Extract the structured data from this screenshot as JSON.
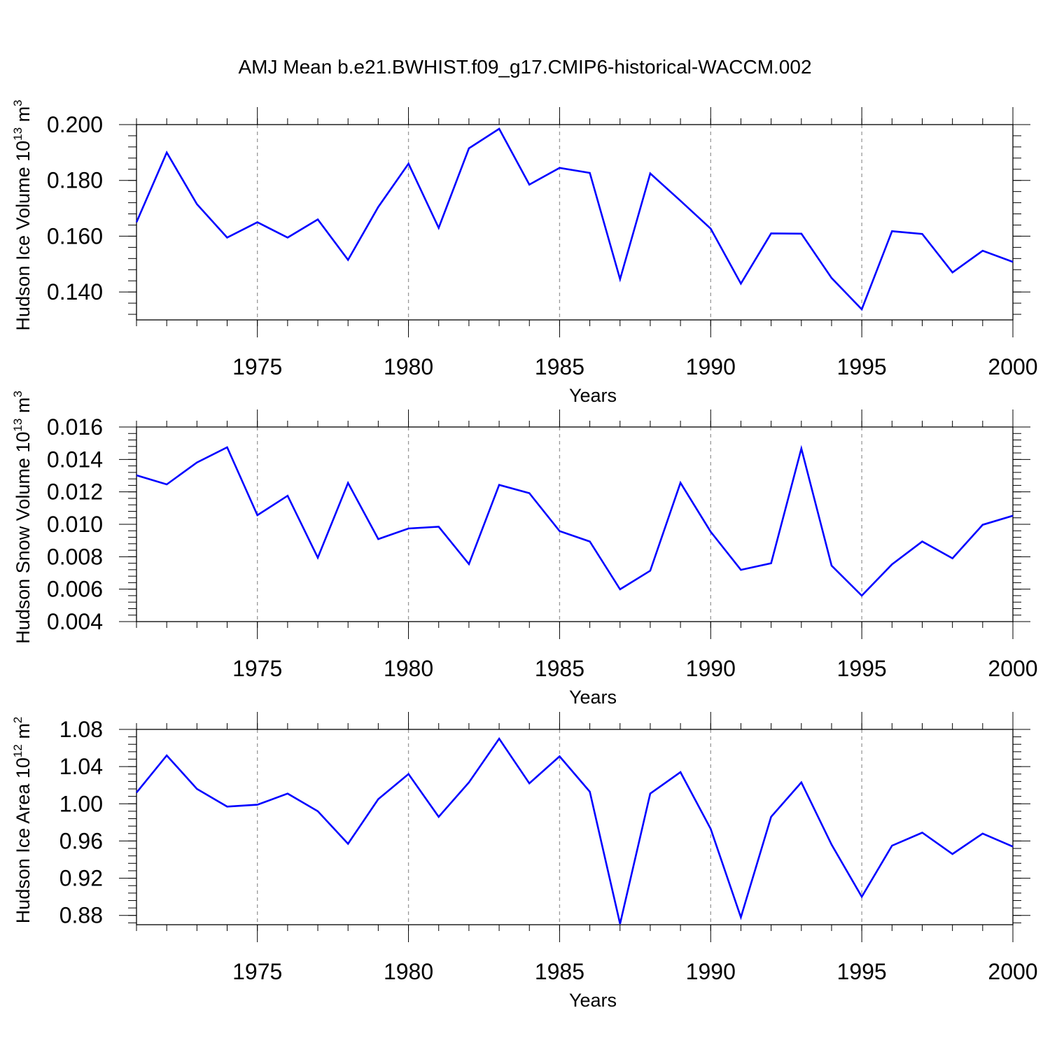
{
  "title": "AMJ Mean b.e21.BWHIST.f09_g17.CMIP6-historical-WACCM.002",
  "chart_data": [
    {
      "type": "line",
      "xlabel": "Years",
      "ylabel": {
        "text": "Hudson Ice Volume 10",
        "sup1": "13",
        "unit": " m",
        "sup2": "3"
      },
      "xlim": [
        1971,
        2000
      ],
      "ylim": [
        0.13,
        0.2
      ],
      "xticks": [
        1975,
        1980,
        1985,
        1990,
        1995,
        2000
      ],
      "xtick_labels": [
        "1975",
        "1980",
        "1985",
        "1990",
        "1995",
        "2000"
      ],
      "yticks": [
        0.14,
        0.16,
        0.18,
        0.2
      ],
      "ytick_labels": [
        "0.140",
        "0.160",
        "0.180",
        "0.200"
      ],
      "y_minor_step": 0.004,
      "grid": "vertical dashed at major x ticks",
      "color": "#0000ff",
      "x": [
        1971,
        1972,
        1973,
        1974,
        1975,
        1976,
        1977,
        1978,
        1979,
        1980,
        1981,
        1982,
        1983,
        1984,
        1985,
        1986,
        1987,
        1988,
        1989,
        1990,
        1991,
        1992,
        1993,
        1994,
        1995,
        1996,
        1997,
        1998,
        1999,
        2000
      ],
      "values": [
        0.165,
        0.19,
        0.1715,
        0.1595,
        0.165,
        0.1595,
        0.166,
        0.1515,
        0.1705,
        0.186,
        0.163,
        0.1915,
        0.1985,
        0.1785,
        0.1845,
        0.1827,
        0.1446,
        0.1825,
        0.1727,
        0.1627,
        0.143,
        0.161,
        0.1609,
        0.145,
        0.1338,
        0.1618,
        0.1608,
        0.147,
        0.1548,
        0.1508
      ]
    },
    {
      "type": "line",
      "xlabel": "Years",
      "ylabel": {
        "text": "Hudson Snow Volume 10",
        "sup1": "13",
        "unit": " m",
        "sup2": "3"
      },
      "xlim": [
        1971,
        2000
      ],
      "ylim": [
        0.004,
        0.016
      ],
      "xticks": [
        1975,
        1980,
        1985,
        1990,
        1995,
        2000
      ],
      "xtick_labels": [
        "1975",
        "1980",
        "1985",
        "1990",
        "1995",
        "2000"
      ],
      "yticks": [
        0.004,
        0.006,
        0.008,
        0.01,
        0.012,
        0.014,
        0.016
      ],
      "ytick_labels": [
        "0.004",
        "0.006",
        "0.008",
        "0.010",
        "0.012",
        "0.014",
        "0.016"
      ],
      "y_minor_step": 0.0004,
      "grid": "vertical dashed at major x ticks",
      "color": "#0000ff",
      "x": [
        1971,
        1972,
        1973,
        1974,
        1975,
        1976,
        1977,
        1978,
        1979,
        1980,
        1981,
        1982,
        1983,
        1984,
        1985,
        1986,
        1987,
        1988,
        1989,
        1990,
        1991,
        1992,
        1993,
        1994,
        1995,
        1996,
        1997,
        1998,
        1999,
        2000
      ],
      "values": [
        0.01302,
        0.01246,
        0.01381,
        0.01475,
        0.01056,
        0.01176,
        0.00794,
        0.01255,
        0.00909,
        0.00974,
        0.00985,
        0.00755,
        0.01243,
        0.01192,
        0.00958,
        0.00894,
        0.00599,
        0.00714,
        0.01256,
        0.00954,
        0.00719,
        0.0076,
        0.01467,
        0.00745,
        0.0056,
        0.00753,
        0.00894,
        0.0079,
        0.00997,
        0.01053
      ]
    },
    {
      "type": "line",
      "xlabel": "Years",
      "ylabel": {
        "text": "Hudson Ice Area 10",
        "sup1": "12",
        "unit": " m",
        "sup2": "2"
      },
      "xlim": [
        1971,
        2000
      ],
      "ylim": [
        0.87,
        1.08
      ],
      "xticks": [
        1975,
        1980,
        1985,
        1990,
        1995,
        2000
      ],
      "xtick_labels": [
        "1975",
        "1980",
        "1985",
        "1990",
        "1995",
        "2000"
      ],
      "yticks": [
        0.88,
        0.92,
        0.96,
        1.0,
        1.04,
        1.08
      ],
      "ytick_labels": [
        "0.88",
        "0.92",
        "0.96",
        "1.00",
        "1.04",
        "1.08"
      ],
      "y_minor_step": 0.008,
      "grid": "vertical dashed at major x ticks",
      "color": "#0000ff",
      "x": [
        1971,
        1972,
        1973,
        1974,
        1975,
        1976,
        1977,
        1978,
        1979,
        1980,
        1981,
        1982,
        1983,
        1984,
        1985,
        1986,
        1987,
        1988,
        1989,
        1990,
        1991,
        1992,
        1993,
        1994,
        1995,
        1996,
        1997,
        1998,
        1999,
        2000
      ],
      "values": [
        1.012,
        1.052,
        1.016,
        0.997,
        0.999,
        1.011,
        0.992,
        0.957,
        1.005,
        1.032,
        0.986,
        1.023,
        1.07,
        1.022,
        1.051,
        1.013,
        0.871,
        1.011,
        1.034,
        0.973,
        0.878,
        0.986,
        1.023,
        0.956,
        0.9,
        0.955,
        0.969,
        0.946,
        0.968,
        0.954
      ]
    }
  ]
}
